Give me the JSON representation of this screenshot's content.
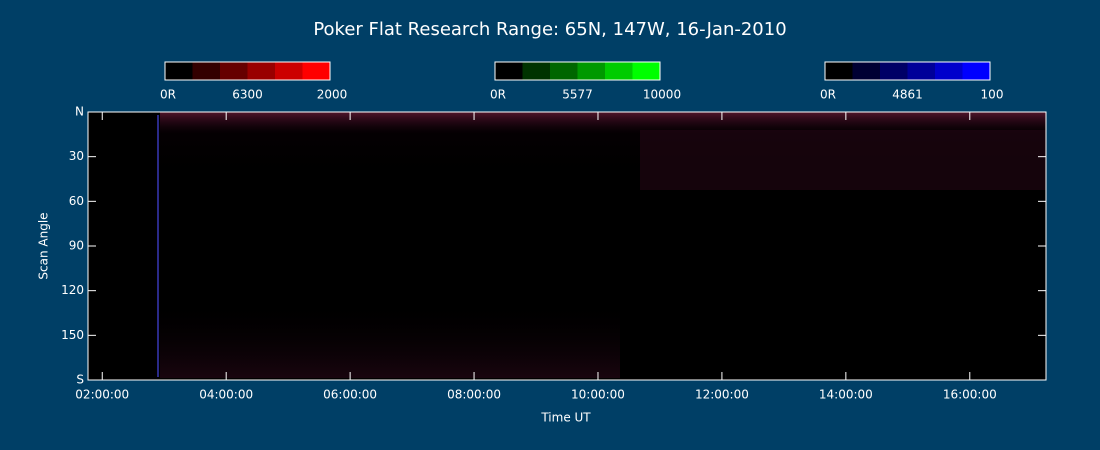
{
  "chart_data": {
    "type": "keogram",
    "title": "Poker Flat Research Range: 65N, 147W, 16-Jan-2010",
    "x_label": "Time UT",
    "y_label": "Scan Angle",
    "xlim": [
      1.77,
      17.23
    ],
    "xticks": [
      {
        "value": 2,
        "label": "02:00:00"
      },
      {
        "value": 4,
        "label": "04:00:00"
      },
      {
        "value": 6,
        "label": "06:00:00"
      },
      {
        "value": 8,
        "label": "08:00:00"
      },
      {
        "value": 10,
        "label": "10:00:00"
      },
      {
        "value": 12,
        "label": "12:00:00"
      },
      {
        "value": 14,
        "label": "14:00:00"
      },
      {
        "value": 16,
        "label": "16:00:00"
      }
    ],
    "ylim": [
      0,
      180
    ],
    "yticks": [
      {
        "value": 0,
        "label": "N"
      },
      30,
      60,
      90,
      120,
      150,
      {
        "value": 180,
        "label": "S"
      }
    ],
    "colorbars": [
      {
        "labels": [
          "0R",
          "6300",
          "2000"
        ],
        "colors": [
          "#000000",
          "#330000",
          "#660000",
          "#990000",
          "#cc0000",
          "#ff0000"
        ]
      },
      {
        "labels": [
          "0R",
          "5577",
          "10000"
        ],
        "colors": [
          "#000000",
          "#003300",
          "#006600",
          "#009900",
          "#00cc00",
          "#00ff00"
        ]
      },
      {
        "labels": [
          "0R",
          "4861",
          "100"
        ],
        "colors": [
          "#000000",
          "#000033",
          "#000066",
          "#000099",
          "#0000cc",
          "#0000ff"
        ]
      }
    ]
  }
}
